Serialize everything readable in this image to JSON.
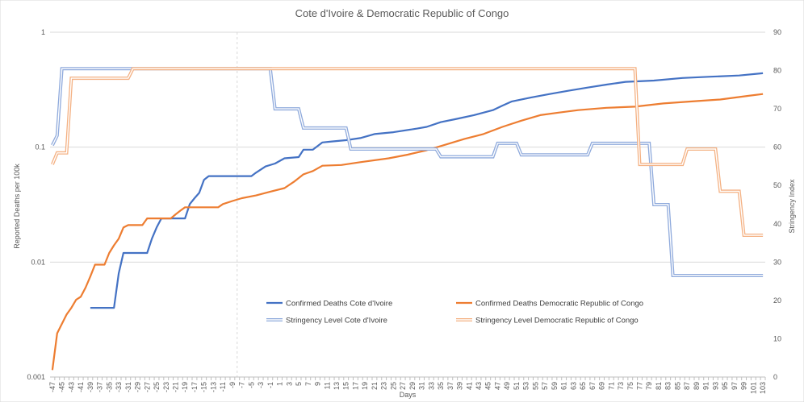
{
  "chart_data": {
    "type": "line",
    "title": "Cote d'Ivoire & Democratic Republic of Congo",
    "xlabel": "Days",
    "ylabel_left": "Reported Deaths per 100k",
    "ylabel_right": "Stringency Index",
    "x_range": [
      -47,
      103
    ],
    "x_tick_step": 2,
    "y_left": {
      "scale": "log",
      "range": [
        0.001,
        1
      ],
      "ticks": [
        {
          "v": 0.001,
          "label": "0.001"
        },
        {
          "v": 0.01,
          "label": "0.01"
        },
        {
          "v": 0.1,
          "label": "0.1"
        },
        {
          "v": 1,
          "label": "1"
        }
      ]
    },
    "y_right": {
      "scale": "linear",
      "range": [
        0,
        90
      ],
      "ticks": [
        0,
        10,
        20,
        30,
        40,
        50,
        60,
        70,
        80,
        90
      ]
    },
    "vertical_marker_x": -8,
    "gridlines": "horizontal",
    "legend_position": "bottom-center",
    "series": [
      {
        "name": "Confirmed Deaths Cote d'Ivoire",
        "axis": "left",
        "color": "#4472C4",
        "style": "solid",
        "points": [
          [
            -39,
            0.004
          ],
          [
            -34,
            0.004
          ],
          [
            -33,
            0.008
          ],
          [
            -32,
            0.012
          ],
          [
            -27,
            0.012
          ],
          [
            -26,
            0.016
          ],
          [
            -25,
            0.02
          ],
          [
            -24,
            0.024
          ],
          [
            -19,
            0.024
          ],
          [
            -18,
            0.032
          ],
          [
            -17,
            0.036
          ],
          [
            -16,
            0.04
          ],
          [
            -15,
            0.052
          ],
          [
            -14,
            0.056
          ],
          [
            -5,
            0.056
          ],
          [
            -4,
            0.06
          ],
          [
            -2,
            0.068
          ],
          [
            0,
            0.072
          ],
          [
            2,
            0.08
          ],
          [
            5,
            0.082
          ],
          [
            6,
            0.095
          ],
          [
            8,
            0.095
          ],
          [
            10,
            0.11
          ],
          [
            12,
            0.112
          ],
          [
            15,
            0.115
          ],
          [
            18,
            0.12
          ],
          [
            21,
            0.13
          ],
          [
            25,
            0.135
          ],
          [
            30,
            0.145
          ],
          [
            32,
            0.15
          ],
          [
            35,
            0.165
          ],
          [
            38,
            0.175
          ],
          [
            42,
            0.19
          ],
          [
            46,
            0.21
          ],
          [
            48,
            0.23
          ],
          [
            50,
            0.25
          ],
          [
            54,
            0.27
          ],
          [
            58,
            0.29
          ],
          [
            62,
            0.31
          ],
          [
            66,
            0.33
          ],
          [
            70,
            0.35
          ],
          [
            74,
            0.37
          ],
          [
            80,
            0.38
          ],
          [
            86,
            0.4
          ],
          [
            92,
            0.41
          ],
          [
            98,
            0.42
          ],
          [
            103,
            0.44
          ]
        ]
      },
      {
        "name": "Confirmed Deaths Democratic Republic of Congo",
        "axis": "left",
        "color": "#ED7D31",
        "style": "solid",
        "points": [
          [
            -47,
            0.00115
          ],
          [
            -46,
            0.0024
          ],
          [
            -44,
            0.0035
          ],
          [
            -43,
            0.004
          ],
          [
            -42,
            0.0047
          ],
          [
            -41,
            0.005
          ],
          [
            -40,
            0.006
          ],
          [
            -39,
            0.0075
          ],
          [
            -38,
            0.0095
          ],
          [
            -36,
            0.0095
          ],
          [
            -35,
            0.012
          ],
          [
            -34,
            0.014
          ],
          [
            -33,
            0.016
          ],
          [
            -32,
            0.02
          ],
          [
            -31,
            0.021
          ],
          [
            -28,
            0.021
          ],
          [
            -27,
            0.024
          ],
          [
            -22,
            0.024
          ],
          [
            -21,
            0.026
          ],
          [
            -20,
            0.028
          ],
          [
            -19,
            0.03
          ],
          [
            -12,
            0.03
          ],
          [
            -11,
            0.032
          ],
          [
            -9,
            0.034
          ],
          [
            -7,
            0.036
          ],
          [
            -4,
            0.038
          ],
          [
            -1,
            0.041
          ],
          [
            2,
            0.044
          ],
          [
            4,
            0.05
          ],
          [
            6,
            0.058
          ],
          [
            8,
            0.062
          ],
          [
            10,
            0.069
          ],
          [
            14,
            0.07
          ],
          [
            18,
            0.074
          ],
          [
            24,
            0.08
          ],
          [
            28,
            0.086
          ],
          [
            32,
            0.094
          ],
          [
            36,
            0.105
          ],
          [
            40,
            0.118
          ],
          [
            44,
            0.13
          ],
          [
            48,
            0.15
          ],
          [
            52,
            0.17
          ],
          [
            56,
            0.19
          ],
          [
            60,
            0.2
          ],
          [
            64,
            0.21
          ],
          [
            70,
            0.22
          ],
          [
            76,
            0.225
          ],
          [
            82,
            0.24
          ],
          [
            88,
            0.25
          ],
          [
            94,
            0.26
          ],
          [
            100,
            0.28
          ],
          [
            103,
            0.29
          ]
        ]
      },
      {
        "name": "Stringency Level Cote d'Ivoire",
        "axis": "right",
        "color": "#8FAADC",
        "style": "double",
        "points": [
          [
            -47,
            60.5
          ],
          [
            -46,
            63
          ],
          [
            -45,
            80.5
          ],
          [
            -1,
            80.5
          ],
          [
            0,
            70
          ],
          [
            5,
            70
          ],
          [
            6,
            65
          ],
          [
            15,
            65
          ],
          [
            16,
            59.5
          ],
          [
            34,
            59.5
          ],
          [
            35,
            57.5
          ],
          [
            46,
            57.5
          ],
          [
            47,
            61
          ],
          [
            51,
            61
          ],
          [
            52,
            58
          ],
          [
            66,
            58
          ],
          [
            67,
            61
          ],
          [
            79,
            61
          ],
          [
            80,
            45
          ],
          [
            83,
            45
          ],
          [
            84,
            26.5
          ],
          [
            103,
            26.5
          ]
        ]
      },
      {
        "name": "Stringency Level Democratic Republic of Congo",
        "axis": "right",
        "color": "#F4B183",
        "style": "double",
        "points": [
          [
            -47,
            55.5
          ],
          [
            -46,
            58.5
          ],
          [
            -44,
            58.5
          ],
          [
            -43,
            78
          ],
          [
            -31,
            78
          ],
          [
            -30,
            80.5
          ],
          [
            76,
            80.5
          ],
          [
            77,
            55.5
          ],
          [
            86,
            55.5
          ],
          [
            87,
            59.5
          ],
          [
            93,
            59.5
          ],
          [
            94,
            48.5
          ],
          [
            98,
            48.5
          ],
          [
            99,
            37
          ],
          [
            103,
            37
          ]
        ]
      }
    ]
  }
}
